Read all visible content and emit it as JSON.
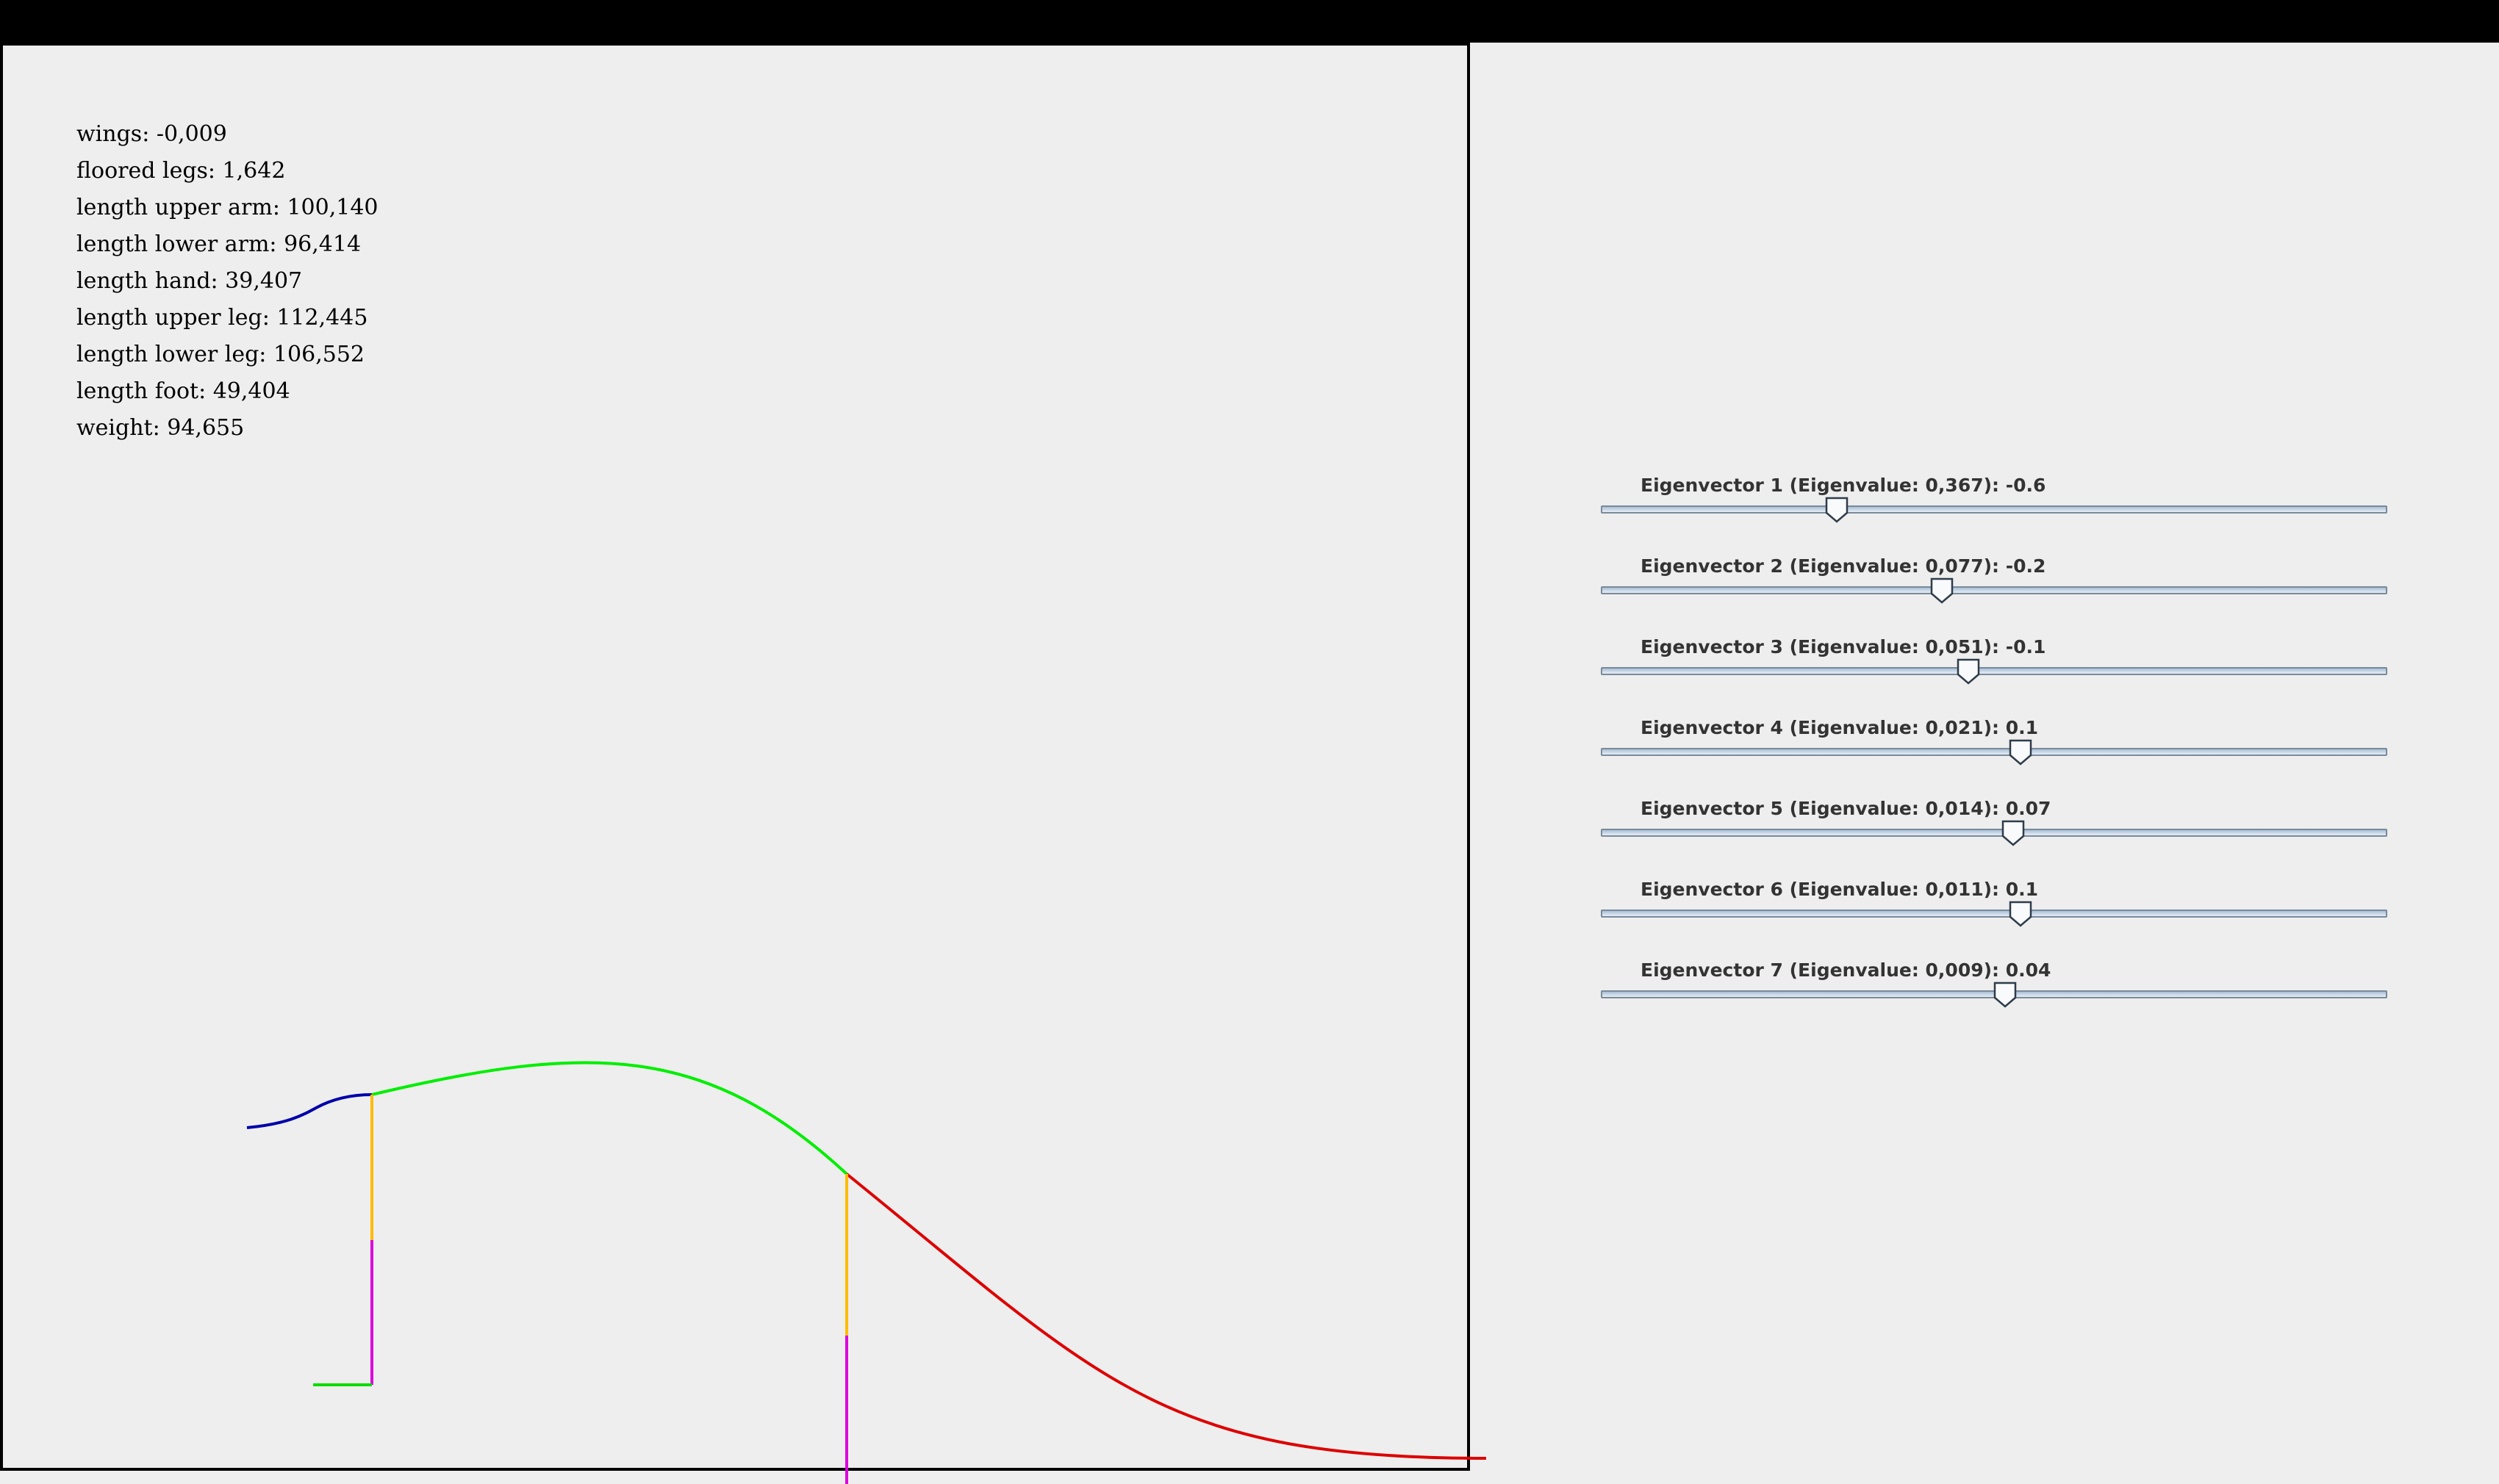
{
  "window": {
    "titlebar_color": "#000000"
  },
  "stats": [
    "wings: -0,009",
    "floored legs: 1,642",
    "length upper arm: 100,140",
    "length lower arm: 96,414",
    "length hand: 39,407",
    "length upper leg: 112,445",
    "length lower leg: 106,552",
    "length foot: 49,404",
    "weight: 94,655"
  ],
  "sliders": [
    {
      "label": "Eigenvector 1 (Eigenvalue: 0,367): -0.6",
      "fraction": 0.3
    },
    {
      "label": "Eigenvector 2 (Eigenvalue: 0,077): -0.2",
      "fraction": 0.434
    },
    {
      "label": "Eigenvector 3 (Eigenvalue: 0,051): -0.1",
      "fraction": 0.467
    },
    {
      "label": "Eigenvector 4 (Eigenvalue: 0,021): 0.1",
      "fraction": 0.534
    },
    {
      "label": "Eigenvector 5 (Eigenvalue: 0,014): 0.07",
      "fraction": 0.524
    },
    {
      "label": "Eigenvector 6 (Eigenvalue: 0,011): 0.1",
      "fraction": 0.534
    },
    {
      "label": "Eigenvector 7 (Eigenvalue: 0,009): 0.04",
      "fraction": 0.514
    }
  ],
  "skeleton_colors": {
    "head": "#0000aa",
    "spine": "#00ee00",
    "tail": "#dd0000",
    "upper_leg": "#ffbb00",
    "lower_leg": "#dd00dd",
    "foot": "#00dd00"
  }
}
